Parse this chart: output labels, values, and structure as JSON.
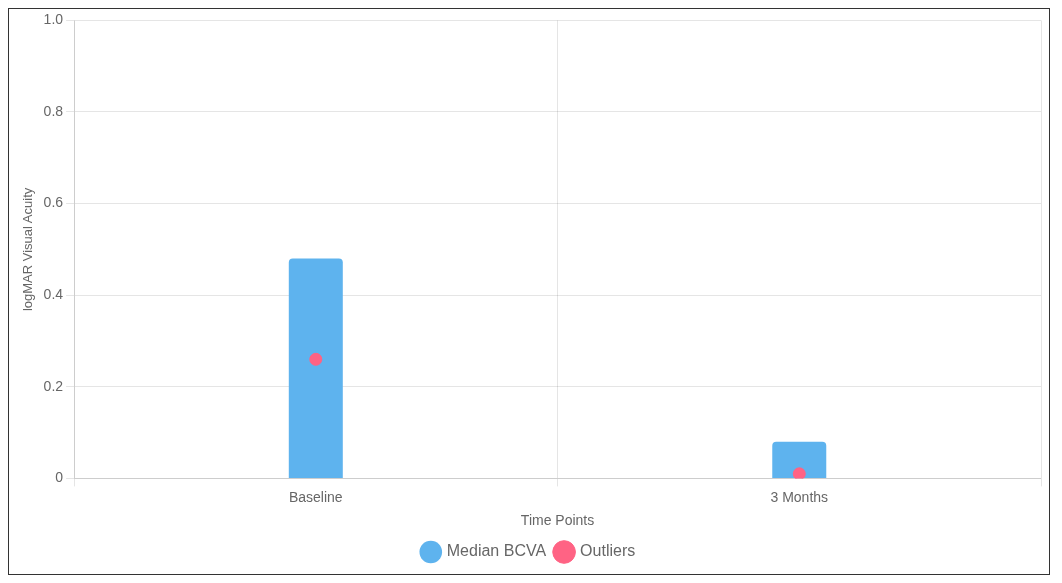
{
  "chart_data": {
    "type": "bar",
    "xlabel": "Time Points",
    "ylabel": "logMAR Visual Acuity",
    "categories": [
      "Baseline",
      "3 Months"
    ],
    "series": [
      {
        "name": "Median BCVA",
        "color": "#5eb3ee",
        "values": [
          0.48,
          0.08
        ]
      },
      {
        "name": "Outliers",
        "type": "scatter",
        "color": "#ff6384",
        "values": [
          0.26,
          0.01
        ]
      }
    ],
    "ylim": [
      0,
      1
    ],
    "yticks": [
      0,
      0.2,
      0.4,
      0.6,
      0.8,
      {
        "value": 1,
        "label": "1.0"
      }
    ],
    "grid": true,
    "legend": "bottom",
    "marker": "circle"
  }
}
